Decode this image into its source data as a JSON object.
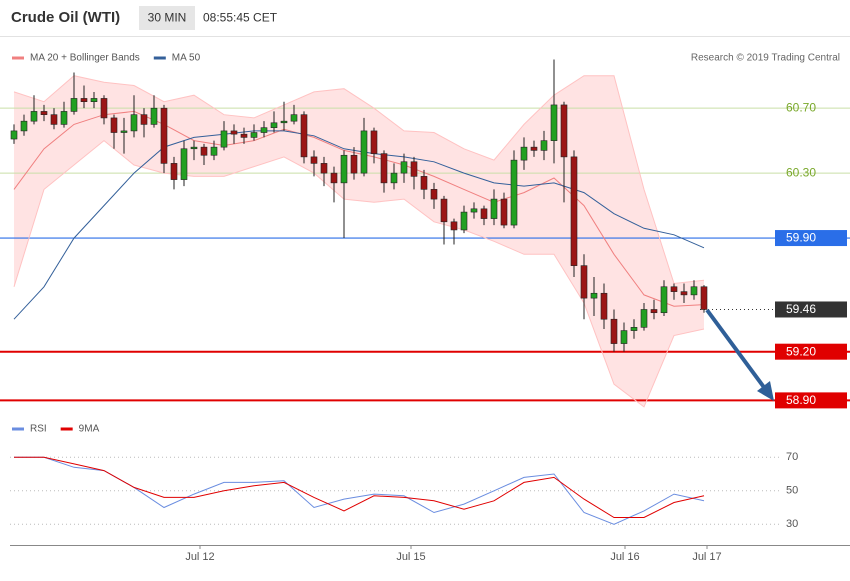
{
  "chart_data": {
    "type": "candlestick",
    "title": "Crude Oil (WTI)",
    "timeframe": "30 MIN",
    "time": "08:55:45 CET",
    "credit": "Research © 2019 Trading Central",
    "up_color": "#22a022",
    "down_color": "#9b1515",
    "open": [
      60.51,
      60.56,
      60.62,
      60.68,
      60.66,
      60.6,
      60.68,
      60.76,
      60.74,
      60.76,
      60.64,
      60.55,
      60.56,
      60.66,
      60.6,
      60.7,
      60.36,
      60.26,
      60.45,
      60.46,
      60.41,
      60.46,
      60.56,
      60.54,
      60.52,
      60.55,
      60.58,
      60.61,
      60.62,
      60.66,
      60.4,
      60.36,
      60.3,
      60.24,
      60.41,
      60.3,
      60.56,
      60.42,
      60.24,
      60.3,
      60.37,
      60.28,
      60.2,
      60.14,
      60.0,
      59.95,
      60.06,
      60.08,
      60.02,
      60.14,
      59.98,
      60.38,
      60.46,
      60.44,
      60.5,
      60.72,
      60.4,
      59.73,
      59.53,
      59.56,
      59.4,
      59.25,
      59.33,
      59.35,
      59.46,
      59.44,
      59.6,
      59.57,
      59.55,
      59.6
    ],
    "high": [
      60.6,
      60.66,
      60.78,
      60.72,
      60.7,
      60.74,
      60.92,
      60.84,
      60.8,
      60.78,
      60.66,
      60.64,
      60.78,
      60.7,
      60.78,
      60.72,
      60.4,
      60.5,
      60.5,
      60.48,
      60.5,
      60.62,
      60.6,
      60.58,
      60.6,
      60.62,
      60.68,
      60.74,
      60.72,
      60.68,
      60.44,
      60.4,
      60.34,
      60.44,
      60.46,
      60.64,
      60.58,
      60.44,
      60.36,
      60.42,
      60.4,
      60.32,
      60.24,
      60.16,
      60.02,
      60.1,
      60.12,
      60.1,
      60.2,
      60.18,
      60.44,
      60.52,
      60.5,
      60.56,
      61.0,
      60.74,
      60.44,
      59.8,
      59.66,
      59.62,
      59.46,
      59.38,
      59.4,
      59.5,
      59.52,
      59.64,
      59.62,
      59.62,
      59.64,
      59.61
    ],
    "low": [
      60.48,
      60.53,
      60.6,
      60.62,
      60.57,
      60.58,
      60.66,
      60.7,
      60.7,
      60.6,
      60.45,
      60.42,
      60.52,
      60.52,
      60.58,
      60.3,
      60.2,
      60.22,
      60.38,
      60.35,
      60.38,
      60.44,
      60.48,
      60.48,
      60.5,
      60.52,
      60.55,
      60.56,
      60.6,
      60.36,
      60.28,
      60.22,
      60.12,
      59.9,
      60.26,
      60.28,
      60.36,
      60.18,
      60.2,
      60.24,
      60.2,
      60.14,
      60.08,
      59.86,
      59.86,
      59.93,
      60.02,
      59.98,
      59.98,
      59.96,
      59.96,
      60.32,
      60.4,
      60.38,
      60.36,
      60.12,
      59.66,
      59.4,
      59.42,
      59.34,
      59.2,
      59.2,
      59.28,
      59.33,
      59.4,
      59.42,
      59.52,
      59.5,
      59.52,
      59.44
    ],
    "close": [
      60.56,
      60.62,
      60.68,
      60.66,
      60.6,
      60.68,
      60.76,
      60.74,
      60.76,
      60.64,
      60.55,
      60.56,
      60.66,
      60.6,
      60.7,
      60.36,
      60.26,
      60.45,
      60.46,
      60.41,
      60.46,
      60.56,
      60.54,
      60.52,
      60.55,
      60.58,
      60.61,
      60.62,
      60.66,
      60.4,
      60.36,
      60.3,
      60.24,
      60.41,
      60.3,
      60.56,
      60.42,
      60.24,
      60.3,
      60.37,
      60.28,
      60.2,
      60.14,
      60.0,
      59.95,
      60.06,
      60.08,
      60.02,
      60.14,
      59.98,
      60.38,
      60.46,
      60.44,
      60.5,
      60.72,
      60.4,
      59.73,
      59.53,
      59.56,
      59.4,
      59.25,
      59.33,
      59.35,
      59.46,
      59.44,
      59.6,
      59.57,
      59.55,
      59.6,
      59.46
    ],
    "xlim": [
      -0.4,
      83.6
    ],
    "xticks": [
      {
        "value": 18.6,
        "label": "Jul 12"
      },
      {
        "value": 39.7,
        "label": "Jul 15"
      },
      {
        "value": 61.1,
        "label": "Jul 16"
      },
      {
        "value": 69.3,
        "label": "Jul 17"
      }
    ],
    "ylim": [
      58.81,
      61.12
    ],
    "levels": [
      {
        "value": 60.7,
        "label": "60.70",
        "color": "#79a82a",
        "kind": "text"
      },
      {
        "value": 60.3,
        "label": "60.30",
        "color": "#79a82a",
        "kind": "text"
      },
      {
        "value": 59.9,
        "label": "59.90",
        "color": "#2a6ee8",
        "kind": "line"
      },
      {
        "value": 59.46,
        "color": "#333333",
        "kind": "dotted"
      },
      {
        "value": 59.2,
        "label": "59.20",
        "color": "#e00000",
        "kind": "thick"
      },
      {
        "value": 58.9,
        "label": "58.90",
        "color": "#e00000",
        "kind": "thick"
      }
    ],
    "overlays": {
      "x": [
        0,
        3,
        6,
        9,
        12,
        15,
        18,
        21,
        24,
        27,
        30,
        33,
        36,
        39,
        42,
        45,
        48,
        51,
        54,
        57,
        60,
        63,
        66,
        69
      ],
      "series": [
        {
          "name": "MA 20 + Bollinger Bands",
          "color": "#f08080",
          "values": [
            60.2,
            60.45,
            60.6,
            60.66,
            60.68,
            60.6,
            60.5,
            60.47,
            60.5,
            60.57,
            60.52,
            60.44,
            60.4,
            60.35,
            60.28,
            60.2,
            60.12,
            60.18,
            60.27,
            60.1,
            59.8,
            59.55,
            59.48,
            59.49
          ],
          "upper": [
            60.8,
            60.74,
            60.9,
            60.86,
            60.84,
            60.74,
            60.78,
            60.66,
            60.64,
            60.72,
            60.8,
            60.82,
            60.7,
            60.56,
            60.55,
            60.45,
            60.38,
            60.6,
            60.78,
            60.9,
            60.9,
            60.2,
            59.62,
            59.64
          ],
          "lower": [
            59.6,
            60.2,
            60.35,
            60.5,
            60.35,
            60.3,
            60.28,
            60.28,
            60.34,
            60.4,
            60.3,
            60.14,
            60.12,
            60.14,
            60.0,
            59.95,
            59.88,
            59.8,
            59.8,
            59.5,
            59.0,
            58.86,
            59.3,
            59.34
          ]
        },
        {
          "name": "MA 50",
          "color": "#34609a",
          "values": [
            59.4,
            59.6,
            59.9,
            60.1,
            60.3,
            60.46,
            60.52,
            60.54,
            60.56,
            60.56,
            60.53,
            60.45,
            60.42,
            60.4,
            60.37,
            60.3,
            60.24,
            60.22,
            60.24,
            60.18,
            60.05,
            59.96,
            59.92,
            59.84
          ]
        }
      ]
    },
    "rsi": {
      "ylim": [
        20,
        80
      ],
      "yticks": [
        70,
        50,
        30
      ],
      "series": [
        {
          "name": "RSI",
          "color": "#6a8de0",
          "values": [
            70,
            70,
            64,
            62,
            52,
            40,
            48,
            55,
            55,
            56,
            40,
            45,
            48,
            47,
            37,
            42,
            50,
            58,
            60,
            37,
            30,
            38,
            48,
            44
          ]
        },
        {
          "name": "9MA",
          "color": "#e00000",
          "values": [
            70,
            70,
            66,
            62,
            52,
            46,
            46,
            50,
            53,
            55,
            46,
            38,
            47,
            46,
            44,
            39,
            44,
            55,
            58,
            45,
            34,
            34,
            43,
            47
          ]
        }
      ]
    }
  }
}
